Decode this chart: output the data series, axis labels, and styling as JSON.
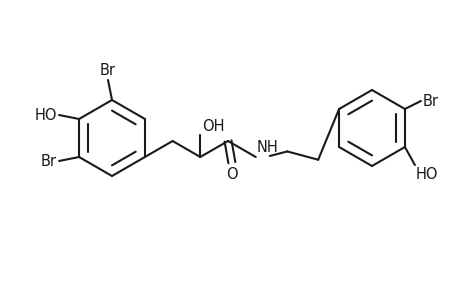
{
  "bg_color": "#ffffff",
  "line_color": "#1a1a1a",
  "line_width": 1.5,
  "font_size": 10.5,
  "font_color": "#1a1a1a",
  "labels": {
    "Br_top": "Br",
    "HO_left": "HO",
    "Br_bottom_left": "Br",
    "OH_middle": "OH",
    "NH": "NH",
    "O_carbonyl": "O",
    "Br_right": "Br",
    "HO_right": "HO"
  }
}
